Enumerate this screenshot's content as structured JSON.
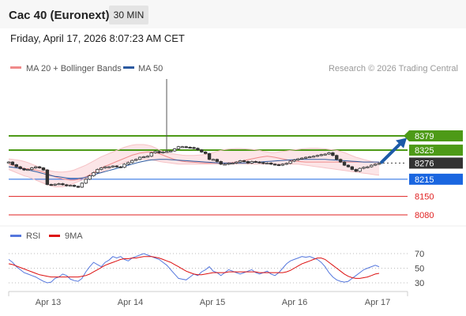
{
  "header": {
    "title": "Cac 40 (Euronext)",
    "timeframe": "30 MIN",
    "timestamp": "Friday, April 17, 2026 8:07:23 AM CET"
  },
  "chart_data": [
    {
      "type": "line",
      "title": "",
      "legend": {
        "placement": "top-left",
        "entries": [
          {
            "name": "MA 20 + Bollinger Bands",
            "color": "#f08a8a"
          },
          {
            "name": "MA 50",
            "color": "#2c5aa0"
          }
        ]
      },
      "credit": "Research © 2026 Trading Central",
      "x_tick_labels": [
        "Apr 13",
        "Apr 14",
        "Apr 15",
        "Apr 16",
        "Apr 17"
      ],
      "ylim": [
        8060,
        8400
      ],
      "current_price": 8276,
      "levels": [
        {
          "label": "8379",
          "value": 8379,
          "kind": "resistance",
          "color": "#4d9a17"
        },
        {
          "label": "8325",
          "value": 8325,
          "kind": "resistance",
          "color": "#4d9a17"
        },
        {
          "label": "8276",
          "value": 8276,
          "kind": "last",
          "color": "#333333"
        },
        {
          "label": "8215",
          "value": 8215,
          "kind": "pivot",
          "color": "#1a66e0"
        },
        {
          "label": "8150",
          "value": 8150,
          "kind": "support",
          "color": "#e02020"
        },
        {
          "label": "8080",
          "value": 8080,
          "kind": "support",
          "color": "#e02020"
        }
      ],
      "projection": {
        "from": 8276,
        "to": 8365,
        "color": "#1c5aa8"
      },
      "series": [
        {
          "name": "Price",
          "color": "#333333",
          "values": [
            8280,
            8270,
            8262,
            8255,
            8250,
            8252,
            8258,
            8262,
            8258,
            8250,
            8195,
            8193,
            8196,
            8198,
            8194,
            8190,
            8192,
            8188,
            8185,
            8200,
            8215,
            8228,
            8240,
            8252,
            8258,
            8262,
            8262,
            8265,
            8262,
            8260,
            8272,
            8278,
            8286,
            8290,
            8298,
            8300,
            8302,
            8315,
            8320,
            8315,
            8318,
            8320,
            8322,
            8330,
            8338,
            8338,
            8336,
            8335,
            8332,
            8326,
            8318,
            8312,
            8290,
            8290,
            8282,
            8272,
            8272,
            8275,
            8276,
            8280,
            8285,
            8282,
            8276,
            8282,
            8280,
            8278,
            8275,
            8276,
            8272,
            8270,
            8268,
            8272,
            8275,
            8283,
            8288,
            8292,
            8295,
            8298,
            8300,
            8302,
            8305,
            8308,
            8310,
            8315,
            8305,
            8290,
            8280,
            8268,
            8262,
            8252,
            8245,
            8256,
            8260,
            8262,
            8268,
            8272,
            8275
          ]
        },
        {
          "name": "MA 20",
          "color": "#f08a8a",
          "values": [
            8272,
            8268,
            8264,
            8260,
            8256,
            8254,
            8252,
            8250,
            8246,
            8242,
            8236,
            8230,
            8224,
            8220,
            8216,
            8214,
            8212,
            8212,
            8214,
            8218,
            8224,
            8232,
            8240,
            8250,
            8258,
            8264,
            8270,
            8276,
            8282,
            8288,
            8294,
            8300,
            8306,
            8310,
            8314,
            8316,
            8318,
            8318,
            8316,
            8312,
            8306,
            8300,
            8295,
            8290,
            8286,
            8283,
            8281,
            8280,
            8279,
            8278,
            8277,
            8276,
            8276,
            8276,
            8276,
            8276,
            8276,
            8277,
            8278,
            8280,
            8283,
            8286,
            8289,
            8292,
            8295,
            8298,
            8300,
            8302,
            8300,
            8298,
            8295,
            8292,
            8289,
            8286,
            8284,
            8282,
            8281,
            8280,
            8280,
            8280,
            8280,
            8280,
            8280,
            8280,
            8280,
            8280,
            8280,
            8280,
            8280,
            8280,
            8280,
            8280,
            8280,
            8280,
            8280,
            8280,
            8280
          ]
        },
        {
          "name": "BB Upper",
          "color": "#f6c3c6",
          "values": [
            8292,
            8290,
            8288,
            8286,
            8282,
            8278,
            8272,
            8266,
            8260,
            8254,
            8250,
            8246,
            8244,
            8242,
            8242,
            8244,
            8246,
            8250,
            8256,
            8262,
            8268,
            8276,
            8284,
            8292,
            8300,
            8306,
            8312,
            8318,
            8324,
            8330,
            8336,
            8340,
            8344,
            8346,
            8346,
            8346,
            8344,
            8340,
            8334,
            8326,
            8320,
            8315,
            8312,
            8310,
            8308,
            8306,
            8305,
            8305,
            8305,
            8306,
            8307,
            8309,
            8312,
            8316,
            8320,
            8324,
            8327,
            8329,
            8330,
            8331,
            8331,
            8330,
            8329,
            8328,
            8326,
            8324,
            8320,
            8318,
            8316,
            8316,
            8318,
            8320,
            8322,
            8324,
            8326,
            8328,
            8330,
            8331,
            8332,
            8332,
            8332,
            8331,
            8330,
            8328,
            8326,
            8324,
            8320,
            8316,
            8310,
            8304,
            8298,
            8294,
            8290,
            8286,
            8282,
            8280,
            8278
          ]
        },
        {
          "name": "BB Lower",
          "color": "#f6c3c6",
          "values": [
            8252,
            8246,
            8240,
            8234,
            8228,
            8224,
            8218,
            8212,
            8206,
            8200,
            8194,
            8190,
            8186,
            8186,
            8186,
            8190,
            8194,
            8200,
            8206,
            8212,
            8218,
            8224,
            8230,
            8236,
            8242,
            8248,
            8254,
            8260,
            8266,
            8272,
            8278,
            8282,
            8286,
            8288,
            8290,
            8290,
            8290,
            8288,
            8286,
            8282,
            8280,
            8278,
            8276,
            8274,
            8272,
            8272,
            8272,
            8272,
            8272,
            8272,
            8272,
            8272,
            8272,
            8272,
            8272,
            8272,
            8272,
            8272,
            8272,
            8272,
            8272,
            8272,
            8272,
            8272,
            8272,
            8272,
            8272,
            8272,
            8272,
            8272,
            8272,
            8272,
            8272,
            8272,
            8272,
            8272,
            8270,
            8268,
            8266,
            8264,
            8262,
            8260,
            8258,
            8256,
            8254,
            8252,
            8250,
            8248,
            8246,
            8244,
            8242,
            8240,
            8238,
            8236,
            8234,
            8232,
            8230
          ]
        },
        {
          "name": "MA 50",
          "color": "#2c5aa0",
          "values": [
            8262,
            8260,
            8258,
            8256,
            8253,
            8250,
            8247,
            8244,
            8240,
            8236,
            8232,
            8229,
            8226,
            8224,
            8222,
            8220,
            8218,
            8218,
            8218,
            8220,
            8222,
            8226,
            8230,
            8236,
            8240,
            8244,
            8248,
            8252,
            8256,
            8260,
            8264,
            8268,
            8272,
            8276,
            8280,
            8283,
            8286,
            8288,
            8289,
            8290,
            8290,
            8290,
            8289,
            8288,
            8287,
            8286,
            8285,
            8284,
            8283,
            8282,
            8281,
            8280,
            8279,
            8278,
            8277,
            8276,
            8276,
            8276,
            8276,
            8276,
            8276,
            8276,
            8277,
            8278,
            8279,
            8280,
            8281,
            8282,
            8283,
            8284,
            8285,
            8286,
            8287,
            8288,
            8289,
            8290,
            8290,
            8290,
            8290,
            8290,
            8290,
            8290,
            8290,
            8289,
            8288,
            8287,
            8286,
            8285,
            8284,
            8283,
            8282,
            8281,
            8280,
            8280,
            8280,
            8280,
            8280
          ]
        }
      ]
    },
    {
      "type": "line",
      "legend": {
        "placement": "top-left",
        "entries": [
          {
            "name": "RSI",
            "color": "#5577dd"
          },
          {
            "name": "9MA",
            "color": "#dd1111"
          }
        ]
      },
      "ylim": [
        20,
        80
      ],
      "y_ticks": [
        70,
        50,
        30
      ],
      "series": [
        {
          "name": "RSI",
          "color": "#5577dd",
          "values": [
            62,
            58,
            52,
            48,
            44,
            42,
            40,
            38,
            35,
            32,
            30,
            31,
            36,
            38,
            42,
            40,
            35,
            33,
            32,
            36,
            45,
            52,
            58,
            55,
            52,
            58,
            61,
            66,
            64,
            66,
            62,
            60,
            64,
            66,
            68,
            70,
            68,
            66,
            64,
            62,
            58,
            54,
            48,
            42,
            36,
            35,
            34,
            38,
            42,
            40,
            45,
            48,
            52,
            46,
            44,
            40,
            44,
            48,
            46,
            44,
            42,
            44,
            46,
            48,
            44,
            42,
            44,
            46,
            42,
            40,
            44,
            50,
            56,
            60,
            62,
            64,
            66,
            65,
            66,
            64,
            62,
            58,
            52,
            44,
            38,
            34,
            32,
            31,
            32,
            36,
            40,
            44,
            48,
            50,
            52,
            54,
            52
          ]
        },
        {
          "name": "9MA",
          "color": "#dd1111",
          "values": [
            56,
            55,
            53,
            51,
            49,
            47,
            45,
            43,
            41,
            40,
            39,
            38,
            38,
            38,
            38,
            38,
            38,
            38,
            38,
            39,
            40,
            42,
            45,
            48,
            51,
            54,
            56,
            58,
            60,
            62,
            63,
            63,
            64,
            64,
            65,
            66,
            66,
            66,
            65,
            64,
            62,
            60,
            58,
            55,
            52,
            49,
            46,
            44,
            42,
            41,
            41,
            42,
            43,
            44,
            44,
            44,
            44,
            45,
            45,
            45,
            45,
            45,
            45,
            45,
            45,
            44,
            44,
            44,
            44,
            44,
            44,
            44,
            45,
            47,
            50,
            53,
            56,
            58,
            60,
            62,
            64,
            64,
            62,
            58,
            54,
            50,
            46,
            42,
            39,
            37,
            36,
            36,
            37,
            38,
            40,
            42,
            43
          ]
        }
      ]
    }
  ]
}
